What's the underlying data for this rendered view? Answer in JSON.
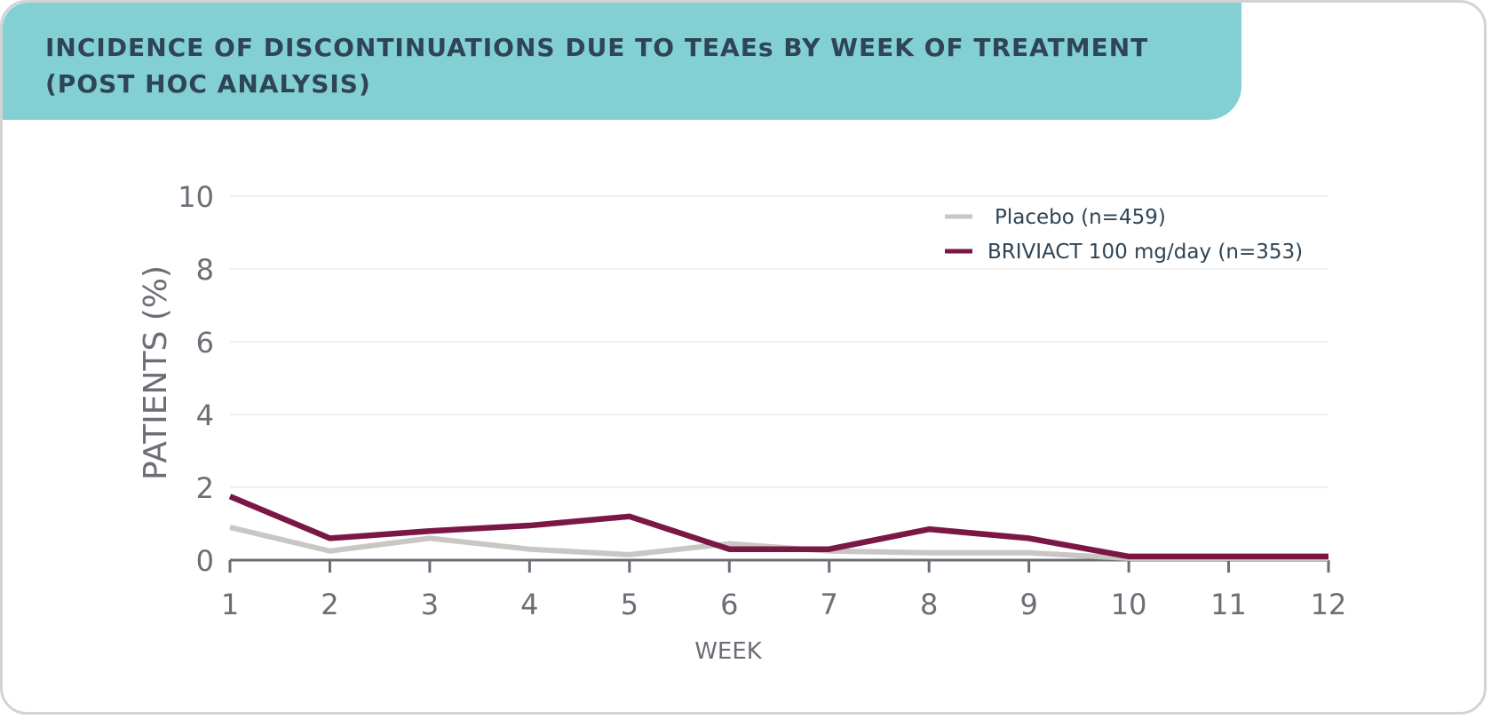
{
  "title_lines": [
    "INCIDENCE OF DISCONTINUATIONS DUE TO TEAEs BY WEEK OF TREATMENT",
    "(POST HOC ANALYSIS)"
  ],
  "colors": {
    "header_bg": "#82d0d4",
    "placebo": "#c9c6c3",
    "briviact": "#7a1747",
    "grid": "#ececec",
    "axis": "#6b6e74"
  },
  "chart_data": {
    "type": "line",
    "title": "INCIDENCE OF DISCONTINUATIONS DUE TO TEAEs BY WEEK OF TREATMENT (POST HOC ANALYSIS)",
    "xlabel": "WEEK",
    "ylabel": "PATIENTS (%)",
    "x": [
      1,
      2,
      3,
      4,
      5,
      6,
      7,
      8,
      9,
      10,
      11,
      12
    ],
    "xticks": [
      "1",
      "2",
      "3",
      "4",
      "5",
      "6",
      "7",
      "8",
      "9",
      "10",
      "11",
      "12"
    ],
    "yticks": [
      "0",
      "2",
      "4",
      "6",
      "8",
      "10"
    ],
    "ylim": [
      0,
      10
    ],
    "grid": true,
    "legend_position": "top-right",
    "series": [
      {
        "name": "Placebo (n=459)",
        "color": "#c9c6c3",
        "values": [
          0.9,
          0.25,
          0.6,
          0.3,
          0.15,
          0.45,
          0.25,
          0.2,
          0.2,
          0.05,
          0.05,
          0.05
        ]
      },
      {
        "name": "BRIVIACT 100 mg/day (n=353)",
        "color": "#7a1747",
        "values": [
          1.75,
          0.6,
          0.8,
          0.95,
          1.2,
          0.3,
          0.3,
          0.85,
          0.6,
          0.1,
          0.1,
          0.1
        ]
      }
    ]
  }
}
